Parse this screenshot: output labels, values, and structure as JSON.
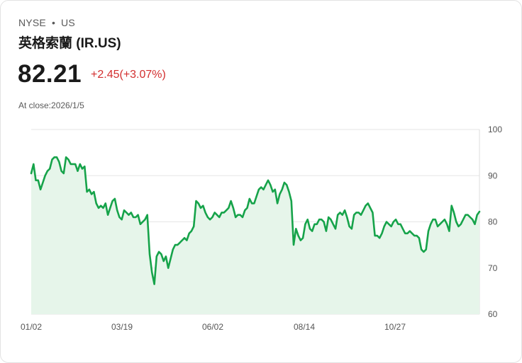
{
  "header": {
    "exchange": "NYSE",
    "separator": "•",
    "market": "US",
    "title": "英格索蘭 (IR.US)",
    "price": "82.21",
    "change": "+2.45(+3.07%)",
    "close_label": "At close:",
    "close_date": "2026/1/5"
  },
  "colors": {
    "line": "#16a34a",
    "fill": "#e6f5ea",
    "change": "#d32f2f"
  },
  "chart_data": {
    "type": "area",
    "title": "",
    "xlabel": "",
    "ylabel": "",
    "ylim": [
      60,
      100
    ],
    "y_ticks": [
      100,
      90,
      80,
      70,
      60
    ],
    "x_ticks": [
      "01/02",
      "03/19",
      "06/02",
      "08/14",
      "10/27"
    ],
    "grid": true,
    "series": [
      {
        "name": "IR.US",
        "values": [
          90.5,
          92.5,
          89,
          89,
          87,
          88.5,
          90,
          91,
          91.5,
          93.5,
          94,
          94,
          93,
          91,
          90.5,
          94,
          93.5,
          92.5,
          92.5,
          92.5,
          91,
          92.5,
          91.5,
          92,
          86.5,
          87,
          86,
          86.5,
          84,
          83,
          83.5,
          83,
          84,
          81.5,
          83,
          84.5,
          85,
          82.5,
          81,
          80.5,
          82.5,
          82,
          81.5,
          82,
          81,
          81,
          81.5,
          79.5,
          80,
          80.5,
          81.5,
          73,
          69,
          66.5,
          72.5,
          73.5,
          73,
          71.5,
          72.5,
          70,
          72,
          74,
          75,
          75,
          75.5,
          76,
          76.5,
          76,
          77.5,
          78,
          79,
          84.5,
          84,
          83,
          83.5,
          82,
          81,
          80.5,
          81,
          82,
          81.5,
          81,
          82,
          82,
          82.5,
          83,
          84.5,
          83,
          81,
          81.5,
          81.5,
          81,
          82.5,
          83,
          85,
          84,
          84,
          85.5,
          87,
          87.5,
          87,
          88,
          89,
          88,
          86.5,
          87,
          84,
          86,
          87,
          88.5,
          88,
          86.5,
          84.5,
          75,
          78.5,
          77,
          76,
          76.5,
          79.5,
          80.5,
          78.5,
          78,
          79.5,
          79.5,
          80.5,
          80.5,
          80,
          78,
          81,
          80.5,
          79.5,
          78.5,
          81.5,
          82,
          81.5,
          82.5,
          81,
          79,
          78.5,
          81.5,
          82,
          82,
          81.5,
          82.5,
          83.5,
          84,
          83,
          82,
          77,
          77,
          76.5,
          77.5,
          79,
          80,
          79.5,
          79,
          80,
          80.5,
          79.5,
          79.5,
          78.5,
          77.5,
          77.5,
          78,
          77.5,
          77,
          77,
          76.5,
          74,
          73.5,
          74,
          78,
          79.5,
          80.5,
          80.5,
          79,
          79.5,
          80,
          80.5,
          79.5,
          78,
          83.5,
          82,
          80,
          79,
          79.5,
          80.5,
          81.5,
          81.5,
          81,
          80.5,
          79.5,
          81.5,
          82.21
        ]
      }
    ]
  }
}
